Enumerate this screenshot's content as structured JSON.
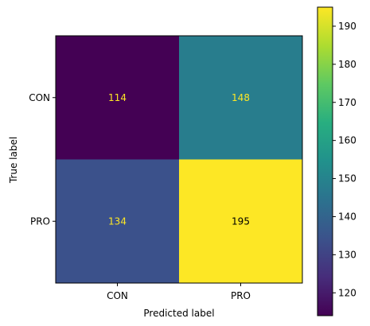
{
  "chart_data": {
    "type": "heatmap",
    "title": "",
    "xlabel": "Predicted label",
    "ylabel": "True label",
    "x_categories": [
      "CON",
      "PRO"
    ],
    "y_categories": [
      "CON",
      "PRO"
    ],
    "values": [
      [
        114,
        148
      ],
      [
        134,
        195
      ]
    ],
    "colormap": "viridis",
    "text_color_dark_cells": "#fde725",
    "text_color_light_cells": "#000000",
    "colorbar": {
      "range": [
        114,
        195
      ],
      "ticks": [
        120,
        130,
        140,
        150,
        160,
        170,
        180,
        190
      ]
    },
    "grid": false
  }
}
